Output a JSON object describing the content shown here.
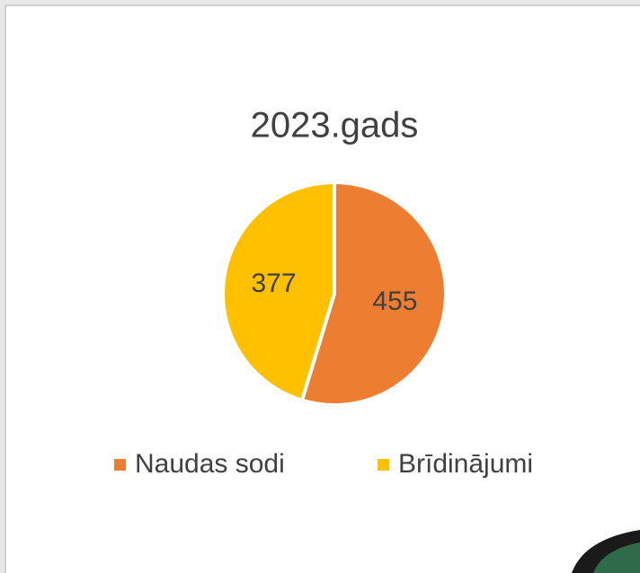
{
  "chart_data": {
    "type": "pie",
    "title": "2023.gads",
    "categories": [
      "Naudas sodi",
      "Brīdinājumi"
    ],
    "values": [
      455,
      377
    ],
    "colors": [
      "#ED7D31",
      "#FFC000"
    ],
    "legend": "bottom"
  }
}
